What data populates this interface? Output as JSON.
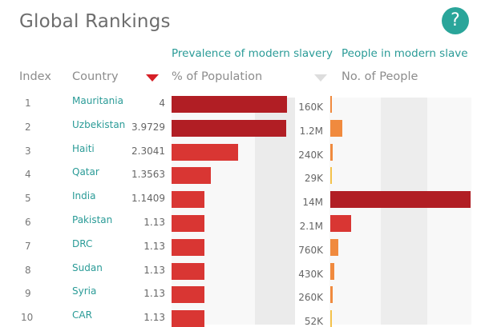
{
  "title": "Global Rankings",
  "help_label": "?",
  "sections": {
    "prevalence": "Prevalence of modern slavery",
    "people": "People in modern slave"
  },
  "headers": {
    "index": "Index",
    "country": "Country",
    "population": "% of Population",
    "people": "No. of People"
  },
  "colors": {
    "accent": "#2aa59a",
    "bar_dark": "#b11e24",
    "bar_mid": "#d93633",
    "bar_orange": "#f08a3e",
    "bar_yellow": "#f4c24b"
  },
  "rows": [
    {
      "index": "1",
      "country": "Mauritania",
      "value": "4",
      "people": "160K",
      "pct": 4,
      "count": 160000
    },
    {
      "index": "2",
      "country": "Uzbekistan",
      "value": "3.9729",
      "people": "1.2M",
      "pct": 3.9729,
      "count": 1200000
    },
    {
      "index": "3",
      "country": "Haiti",
      "value": "2.3041",
      "people": "240K",
      "pct": 2.3041,
      "count": 240000
    },
    {
      "index": "4",
      "country": "Qatar",
      "value": "1.3563",
      "people": "29K",
      "pct": 1.3563,
      "count": 29000
    },
    {
      "index": "5",
      "country": "India",
      "value": "1.1409",
      "people": "14M",
      "pct": 1.1409,
      "count": 14000000
    },
    {
      "index": "6",
      "country": "Pakistan",
      "value": "1.13",
      "people": "2.1M",
      "pct": 1.13,
      "count": 2100000
    },
    {
      "index": "7",
      "country": "DRC",
      "value": "1.13",
      "people": "760K",
      "pct": 1.13,
      "count": 760000
    },
    {
      "index": "8",
      "country": "Sudan",
      "value": "1.13",
      "people": "430K",
      "pct": 1.13,
      "count": 430000
    },
    {
      "index": "9",
      "country": "Syria",
      "value": "1.13",
      "people": "260K",
      "pct": 1.13,
      "count": 260000
    },
    {
      "index": "10",
      "country": "CAR",
      "value": "1.13",
      "people": "52K",
      "pct": 1.13,
      "count": 52000
    }
  ]
}
